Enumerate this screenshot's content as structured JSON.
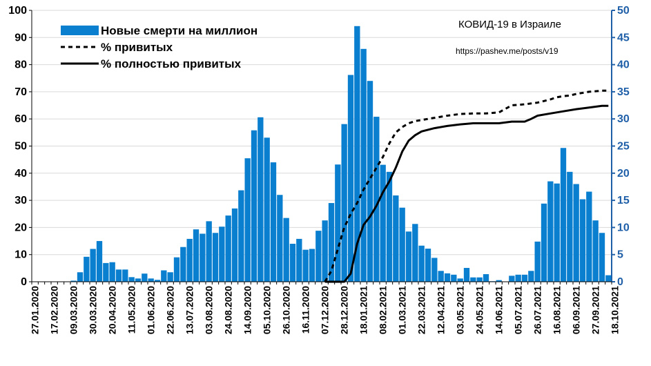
{
  "chart_data": {
    "type": "bar",
    "title": "КОВИД-19 в Израиле",
    "subtitle": "https://pashev.me/posts/v19",
    "x_tick_labels": [
      "27.01.2020",
      "17.02.2020",
      "09.03.2020",
      "30.03.2020",
      "20.04.2020",
      "11.05.2020",
      "01.06.2020",
      "22.06.2020",
      "13.07.2020",
      "03.08.2020",
      "24.08.2020",
      "14.09.2020",
      "05.10.2020",
      "26.10.2020",
      "16.11.2020",
      "07.12.2020",
      "28.12.2020",
      "18.01.2021",
      "08.02.2021",
      "01.03.2021",
      "22.03.2021",
      "12.04.2021",
      "03.05.2021",
      "24.05.2021",
      "14.06.2021",
      "05.07.2021",
      "26.07.2021",
      "16.08.2021",
      "06.09.2021",
      "27.09.2021",
      "18.10.2021"
    ],
    "y_left": {
      "ylim": [
        0,
        100
      ],
      "ticks": [
        0,
        10,
        20,
        30,
        40,
        50,
        60,
        70,
        80,
        90,
        100
      ]
    },
    "y_right": {
      "ylim": [
        0,
        50
      ],
      "ticks": [
        0,
        5,
        10,
        15,
        20,
        25,
        30,
        35,
        40,
        45,
        50
      ],
      "color": "#1f5fa8"
    },
    "grid": true,
    "legend_position": "top-left",
    "series": [
      {
        "name": "Новые смерти на миллион",
        "type": "bar",
        "axis": "left",
        "color": "#0a7fcf",
        "values": [
          0,
          0,
          0,
          0,
          0,
          0,
          0.4,
          3.5,
          9.2,
          12.1,
          15,
          6.9,
          7.2,
          4.5,
          4.5,
          1.7,
          1.2,
          3,
          1.2,
          0.7,
          4.2,
          3.5,
          9,
          12.8,
          15.8,
          19.3,
          17.7,
          22.3,
          18,
          20.3,
          24.4,
          27,
          33.7,
          45.5,
          55.8,
          60.6,
          53.1,
          44,
          32,
          23.5,
          14,
          15.8,
          11.8,
          12.1,
          18.8,
          22.6,
          29,
          43.2,
          58.1,
          76.2,
          94.2,
          85.8,
          74,
          60.8,
          43.1,
          40.5,
          31.8,
          27.3,
          18.5,
          21.3,
          13.3,
          12.2,
          8.8,
          4,
          3.1,
          2.6,
          1.2,
          5.1,
          1.6,
          1.6,
          2.8,
          0.2,
          0.6,
          0,
          2.2,
          2.6,
          2.6,
          4,
          14.8,
          28.8,
          37,
          36.2,
          49.3,
          40.5,
          36,
          30.4,
          33.2,
          22.6,
          18,
          2.4
        ]
      },
      {
        "name": "% привитых",
        "type": "line",
        "axis": "right",
        "style": "dashed",
        "color": "#000000",
        "x_index": [
          45,
          46,
          47,
          48,
          49,
          50,
          51,
          52,
          53,
          54,
          55,
          56,
          57,
          58,
          59,
          60,
          62,
          64,
          66,
          68,
          70,
          72,
          74,
          75,
          76,
          78,
          79,
          80,
          81,
          82,
          83,
          84,
          86,
          88,
          89
        ],
        "values": [
          0,
          2,
          6,
          10,
          12.5,
          14.5,
          17,
          19,
          21,
          23,
          25.5,
          27.5,
          28.5,
          29.2,
          29.6,
          29.8,
          30.2,
          30.6,
          30.9,
          31,
          31,
          31.2,
          32.5,
          32.6,
          32.7,
          33,
          33.3,
          33.6,
          34,
          34.2,
          34.3,
          34.6,
          35,
          35.2,
          35.2
        ]
      },
      {
        "name": "% полностью привитых",
        "type": "line",
        "axis": "right",
        "style": "solid",
        "color": "#000000",
        "x_index": [
          45,
          46,
          47,
          48,
          49,
          50,
          51,
          52,
          53,
          54,
          55,
          56,
          57,
          58,
          59,
          60,
          62,
          64,
          66,
          68,
          70,
          72,
          74,
          76,
          77,
          78,
          80,
          82,
          84,
          86,
          88,
          89
        ],
        "values": [
          0,
          0,
          0,
          0,
          1.5,
          7,
          10.5,
          12,
          14,
          16.5,
          18.5,
          21,
          24,
          26,
          27,
          27.7,
          28.3,
          28.7,
          29,
          29.2,
          29.2,
          29.2,
          29.5,
          29.5,
          30,
          30.6,
          31,
          31.4,
          31.8,
          32.1,
          32.4,
          32.4
        ]
      }
    ]
  }
}
